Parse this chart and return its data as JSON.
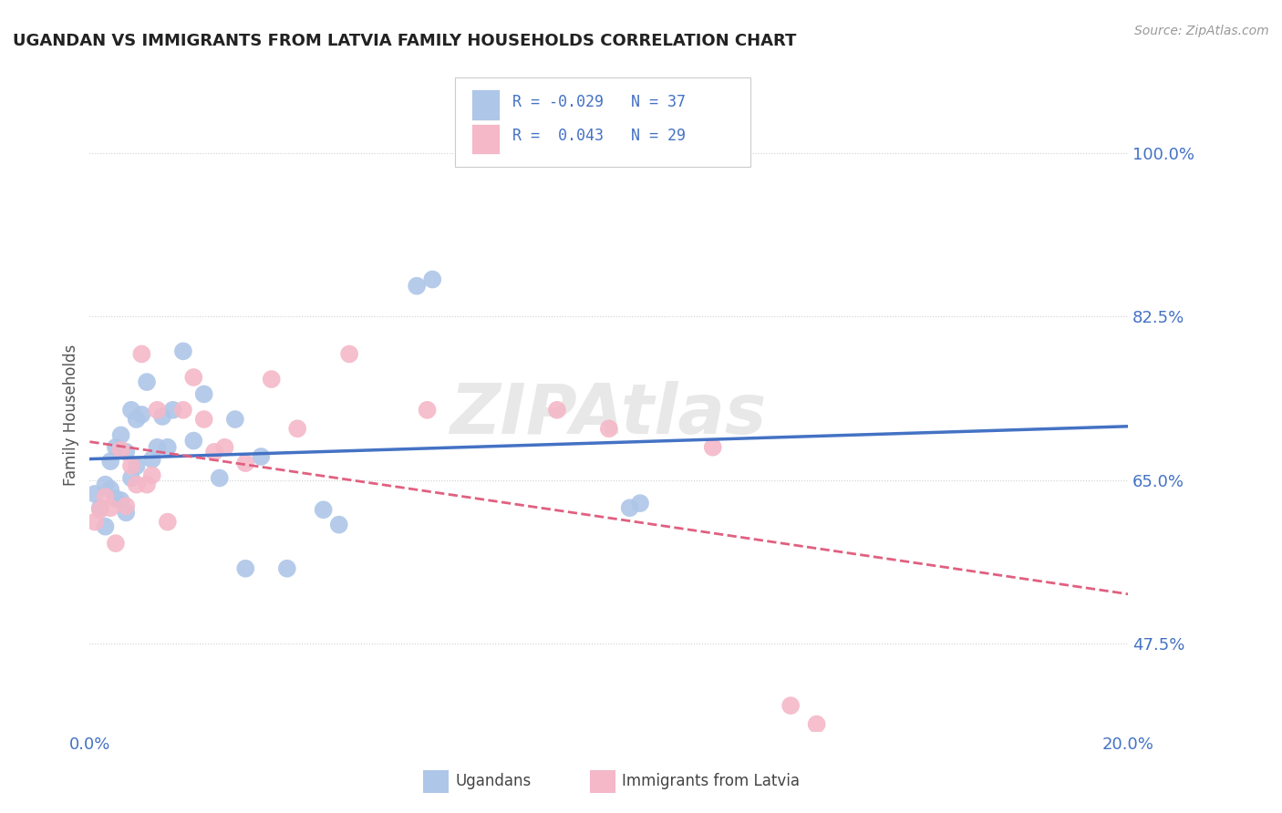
{
  "title": "UGANDAN VS IMMIGRANTS FROM LATVIA FAMILY HOUSEHOLDS CORRELATION CHART",
  "source": "Source: ZipAtlas.com",
  "ylabel": "Family Households",
  "ytick_labels": [
    "47.5%",
    "65.0%",
    "82.5%",
    "100.0%"
  ],
  "ytick_values": [
    0.475,
    0.65,
    0.825,
    1.0
  ],
  "xlim": [
    0.0,
    0.2
  ],
  "ylim": [
    0.38,
    1.06
  ],
  "r_ugandan": -0.029,
  "n_ugandan": 37,
  "r_latvia": 0.043,
  "n_latvia": 29,
  "ugandan_color": "#aec6e8",
  "latvia_color": "#f4b8c8",
  "ugandan_line_color": "#4472c4",
  "latvia_line_color": "#e06080",
  "watermark": "ZIPAtlas",
  "ugandan_x": [
    0.001,
    0.002,
    0.003,
    0.003,
    0.004,
    0.004,
    0.005,
    0.005,
    0.006,
    0.006,
    0.007,
    0.007,
    0.008,
    0.008,
    0.009,
    0.009,
    0.01,
    0.011,
    0.012,
    0.013,
    0.014,
    0.015,
    0.016,
    0.018,
    0.02,
    0.022,
    0.025,
    0.028,
    0.03,
    0.033,
    0.038,
    0.045,
    0.048,
    0.063,
    0.066,
    0.104,
    0.106
  ],
  "ugandan_y": [
    0.635,
    0.62,
    0.6,
    0.645,
    0.64,
    0.67,
    0.63,
    0.685,
    0.628,
    0.698,
    0.615,
    0.68,
    0.725,
    0.652,
    0.665,
    0.715,
    0.72,
    0.755,
    0.672,
    0.685,
    0.718,
    0.685,
    0.725,
    0.788,
    0.692,
    0.742,
    0.652,
    0.715,
    0.555,
    0.675,
    0.555,
    0.618,
    0.602,
    0.858,
    0.865,
    0.62,
    0.625
  ],
  "latvia_x": [
    0.001,
    0.002,
    0.003,
    0.004,
    0.005,
    0.006,
    0.007,
    0.008,
    0.009,
    0.01,
    0.011,
    0.012,
    0.013,
    0.015,
    0.018,
    0.02,
    0.022,
    0.024,
    0.026,
    0.03,
    0.035,
    0.04,
    0.05,
    0.065,
    0.09,
    0.1,
    0.12,
    0.135,
    0.14
  ],
  "latvia_y": [
    0.605,
    0.618,
    0.632,
    0.62,
    0.582,
    0.682,
    0.622,
    0.665,
    0.645,
    0.785,
    0.645,
    0.655,
    0.725,
    0.605,
    0.725,
    0.76,
    0.715,
    0.68,
    0.685,
    0.668,
    0.758,
    0.705,
    0.785,
    0.725,
    0.725,
    0.705,
    0.685,
    0.408,
    0.388
  ],
  "legend_r1": "R = -0.029",
  "legend_n1": "N = 37",
  "legend_r2": "R =  0.043",
  "legend_n2": "N = 29"
}
